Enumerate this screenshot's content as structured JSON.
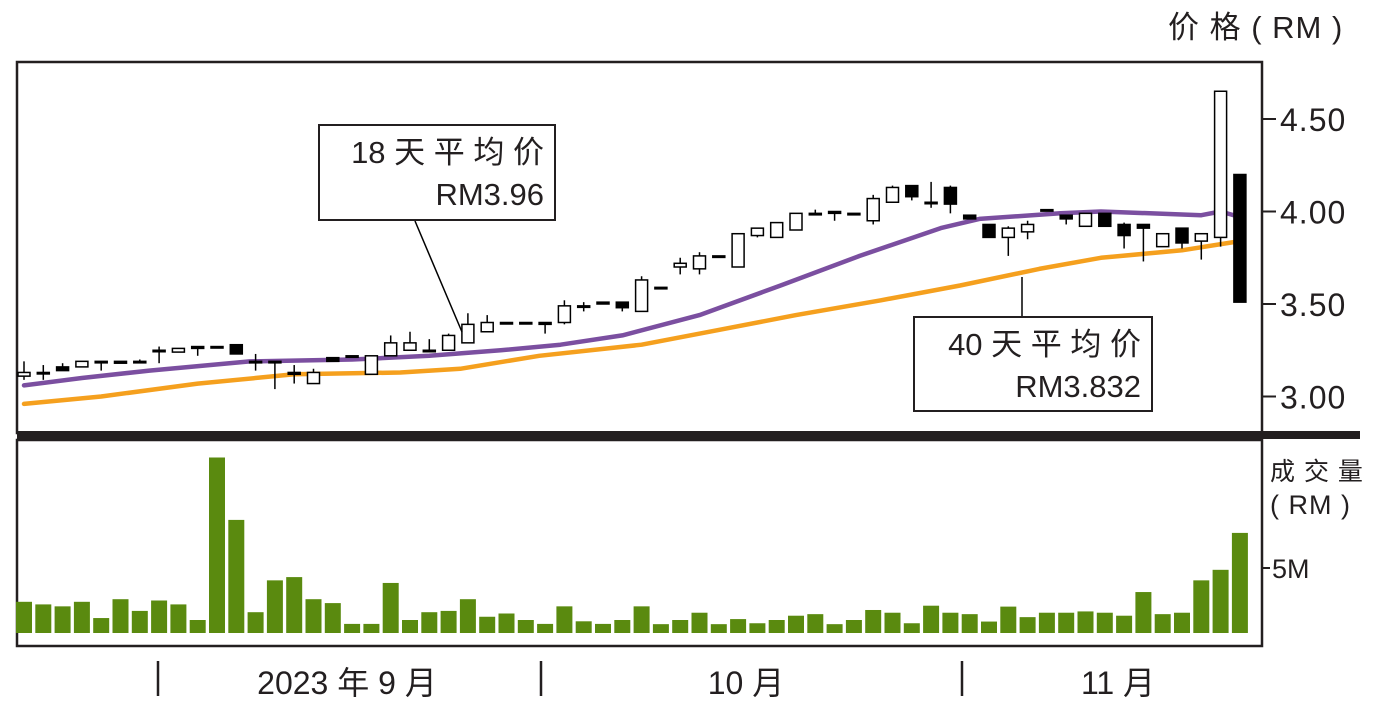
{
  "chart_data": {
    "type": "candlestick",
    "price_axis": {
      "label": "价 格 ( RM )",
      "ticks": [
        3.0,
        3.5,
        4.0,
        4.5
      ],
      "tick_labels": [
        "3.00",
        "3.50",
        "4.00",
        "4.50"
      ],
      "ylim": [
        2.88,
        4.81
      ]
    },
    "volume_axis": {
      "label_line1": "成 交 量",
      "label_line2": "( RM )",
      "ticks": [
        5
      ],
      "tick_labels": [
        "5M"
      ],
      "ylim": [
        0,
        14
      ]
    },
    "x_labels": [
      {
        "text": "2023 年 9 月"
      },
      {
        "text": "10 月"
      },
      {
        "text": "11 月"
      }
    ],
    "month_dividers_at_index": [
      7,
      27,
      49
    ],
    "candles": [
      [
        3.11,
        3.19,
        3.09,
        3.13
      ],
      [
        3.13,
        3.17,
        3.09,
        3.13
      ],
      [
        3.16,
        3.18,
        3.14,
        3.14
      ],
      [
        3.16,
        3.19,
        3.16,
        3.19
      ],
      [
        3.19,
        3.19,
        3.14,
        3.19
      ],
      [
        3.19,
        3.19,
        3.18,
        3.18
      ],
      [
        3.19,
        3.2,
        3.18,
        3.19
      ],
      [
        3.25,
        3.27,
        3.18,
        3.25
      ],
      [
        3.24,
        3.26,
        3.24,
        3.26
      ],
      [
        3.27,
        3.27,
        3.22,
        3.26
      ],
      [
        3.27,
        3.27,
        3.27,
        3.27
      ],
      [
        3.28,
        3.28,
        3.23,
        3.23
      ],
      [
        3.19,
        3.23,
        3.14,
        3.19
      ],
      [
        3.19,
        3.19,
        3.04,
        3.19
      ],
      [
        3.13,
        3.17,
        3.07,
        3.12
      ],
      [
        3.07,
        3.15,
        3.07,
        3.13
      ],
      [
        3.21,
        3.21,
        3.19,
        3.19
      ],
      [
        3.22,
        3.22,
        3.22,
        3.22
      ],
      [
        3.12,
        3.22,
        3.12,
        3.22
      ],
      [
        3.22,
        3.33,
        3.22,
        3.29
      ],
      [
        3.25,
        3.35,
        3.25,
        3.29
      ],
      [
        3.25,
        3.31,
        3.25,
        3.25
      ],
      [
        3.25,
        3.34,
        3.25,
        3.33
      ],
      [
        3.29,
        3.45,
        3.29,
        3.39
      ],
      [
        3.35,
        3.44,
        3.35,
        3.4
      ],
      [
        3.4,
        3.4,
        3.4,
        3.4
      ],
      [
        3.4,
        3.4,
        3.39,
        3.4
      ],
      [
        3.4,
        3.4,
        3.34,
        3.39
      ],
      [
        3.4,
        3.52,
        3.39,
        3.49
      ],
      [
        3.49,
        3.51,
        3.46,
        3.49
      ],
      [
        3.51,
        3.51,
        3.5,
        3.5
      ],
      [
        3.51,
        3.51,
        3.46,
        3.48
      ],
      [
        3.46,
        3.65,
        3.46,
        3.63
      ],
      [
        3.59,
        3.59,
        3.59,
        3.59
      ],
      [
        3.7,
        3.75,
        3.66,
        3.72
      ],
      [
        3.69,
        3.78,
        3.66,
        3.76
      ],
      [
        3.76,
        3.76,
        3.76,
        3.76
      ],
      [
        3.7,
        3.88,
        3.7,
        3.88
      ],
      [
        3.87,
        3.91,
        3.86,
        3.91
      ],
      [
        3.86,
        3.94,
        3.86,
        3.94
      ],
      [
        3.9,
        3.99,
        3.9,
        3.99
      ],
      [
        3.99,
        4.01,
        3.99,
        3.99
      ],
      [
        4.0,
        4.0,
        3.95,
        3.99
      ],
      [
        3.99,
        3.99,
        3.99,
        3.99
      ],
      [
        3.95,
        4.09,
        3.93,
        4.07
      ],
      [
        4.05,
        4.14,
        4.05,
        4.13
      ],
      [
        4.14,
        4.14,
        4.06,
        4.08
      ],
      [
        4.05,
        4.16,
        4.02,
        4.05
      ],
      [
        4.13,
        4.14,
        3.99,
        4.04
      ],
      [
        3.98,
        3.98,
        3.96,
        3.96
      ],
      [
        3.93,
        3.93,
        3.86,
        3.86
      ],
      [
        3.86,
        3.92,
        3.76,
        3.91
      ],
      [
        3.89,
        3.95,
        3.85,
        3.93
      ],
      [
        4.01,
        4.01,
        4.01,
        4.01
      ],
      [
        3.98,
        3.98,
        3.93,
        3.96
      ],
      [
        3.92,
        3.99,
        3.92,
        3.99
      ],
      [
        3.99,
        3.99,
        3.92,
        3.92
      ],
      [
        3.93,
        3.94,
        3.8,
        3.87
      ],
      [
        3.93,
        3.93,
        3.73,
        3.91
      ],
      [
        3.81,
        3.88,
        3.81,
        3.88
      ],
      [
        3.91,
        3.91,
        3.8,
        3.83
      ],
      [
        3.84,
        3.88,
        3.74,
        3.88
      ],
      [
        3.86,
        4.65,
        3.81,
        4.65
      ],
      [
        4.2,
        4.2,
        3.51,
        3.51
      ]
    ],
    "candle_fields": [
      "open",
      "high",
      "low",
      "close"
    ],
    "volume_millions": [
      2.4,
      2.2,
      2.05,
      2.4,
      1.15,
      2.6,
      1.7,
      2.5,
      2.2,
      1.0,
      13.5,
      8.7,
      1.6,
      4.05,
      4.3,
      2.6,
      2.3,
      0.7,
      0.7,
      3.85,
      1.0,
      1.6,
      1.7,
      2.6,
      1.25,
      1.5,
      1.0,
      0.7,
      2.05,
      0.9,
      0.7,
      1.0,
      2.05,
      0.68,
      1.0,
      1.56,
      0.68,
      1.07,
      0.75,
      1.0,
      1.33,
      1.45,
      0.68,
      1.0,
      1.77,
      1.56,
      0.75,
      2.1,
      1.56,
      1.45,
      0.88,
      2.03,
      1.22,
      1.56,
      1.56,
      1.66,
      1.56,
      1.33,
      3.15,
      1.45,
      1.56,
      4.05,
      4.86,
      7.7
    ],
    "series": [
      {
        "name": "18 天 平 均 价",
        "color": "#7b4fa0",
        "points": [
          [
            0,
            3.06
          ],
          [
            3,
            3.1
          ],
          [
            6.5,
            3.14
          ],
          [
            11.7,
            3.19
          ],
          [
            17,
            3.2
          ],
          [
            21,
            3.22
          ],
          [
            24.7,
            3.25
          ],
          [
            27.8,
            3.28
          ],
          [
            31,
            3.33
          ],
          [
            35,
            3.44
          ],
          [
            39.2,
            3.6
          ],
          [
            43.3,
            3.76
          ],
          [
            47.5,
            3.91
          ],
          [
            49.5,
            3.96
          ],
          [
            53.7,
            3.99
          ],
          [
            55.8,
            4.0
          ],
          [
            61,
            3.98
          ],
          [
            62,
            4.0
          ],
          [
            63,
            3.97
          ]
        ]
      },
      {
        "name": "40 天 平 均 价",
        "color": "#f5a01e",
        "points": [
          [
            0,
            2.96
          ],
          [
            4,
            3.0
          ],
          [
            9,
            3.07
          ],
          [
            14,
            3.12
          ],
          [
            19.5,
            3.13
          ],
          [
            22.6,
            3.15
          ],
          [
            26.7,
            3.22
          ],
          [
            32,
            3.28
          ],
          [
            36,
            3.36
          ],
          [
            40,
            3.44
          ],
          [
            44.4,
            3.52
          ],
          [
            48.5,
            3.6
          ],
          [
            52.6,
            3.69
          ],
          [
            55.8,
            3.75
          ],
          [
            60,
            3.79
          ],
          [
            63,
            3.84
          ]
        ]
      }
    ],
    "annotations": [
      {
        "title": "18 天 平 均 价",
        "value": "RM3.96"
      },
      {
        "title": "40 天 平 均 价",
        "value": "RM3.832"
      }
    ],
    "colors": {
      "volume": "#5a8a0f",
      "up": "#ffffff",
      "down": "#000000",
      "frame": "#231f20"
    }
  }
}
